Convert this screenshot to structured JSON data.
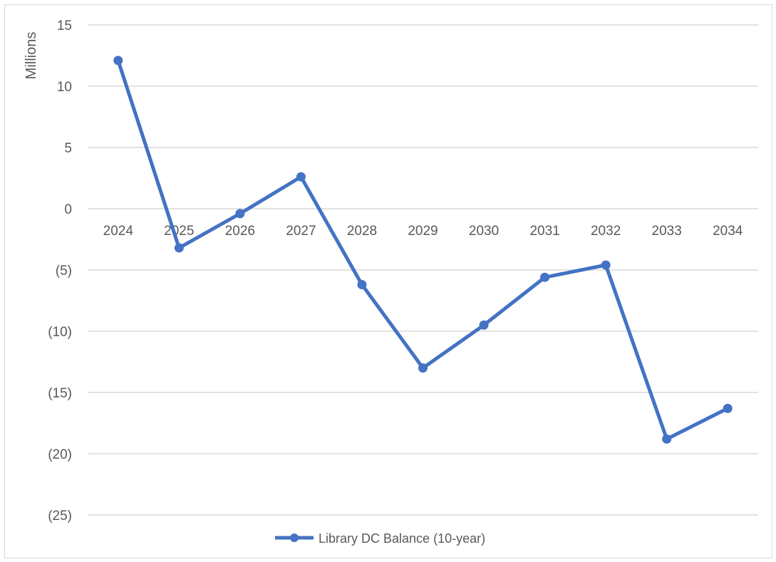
{
  "chart_data": {
    "type": "line",
    "x": [
      "2024",
      "2025",
      "2026",
      "2027",
      "2028",
      "2029",
      "2030",
      "2031",
      "2032",
      "2033",
      "2034"
    ],
    "series": [
      {
        "name": "Library DC Balance (10-year)",
        "values": [
          12.1,
          -3.2,
          -0.4,
          2.6,
          -6.2,
          -13.0,
          -9.5,
          -5.6,
          -4.6,
          -18.8,
          -16.3
        ],
        "color": "#4472c4"
      }
    ],
    "title": "",
    "xlabel": "",
    "ylabel": "Millions",
    "ylim": [
      -25,
      15
    ],
    "yticks": [
      15,
      10,
      5,
      0,
      -5,
      -10,
      -15,
      -20,
      -25
    ],
    "ytick_labels": [
      "15",
      "10",
      "5",
      "0",
      "(5)",
      "(10)",
      "(15)",
      "(20)",
      "(25)"
    ],
    "grid": true,
    "legend_position": "bottom"
  }
}
